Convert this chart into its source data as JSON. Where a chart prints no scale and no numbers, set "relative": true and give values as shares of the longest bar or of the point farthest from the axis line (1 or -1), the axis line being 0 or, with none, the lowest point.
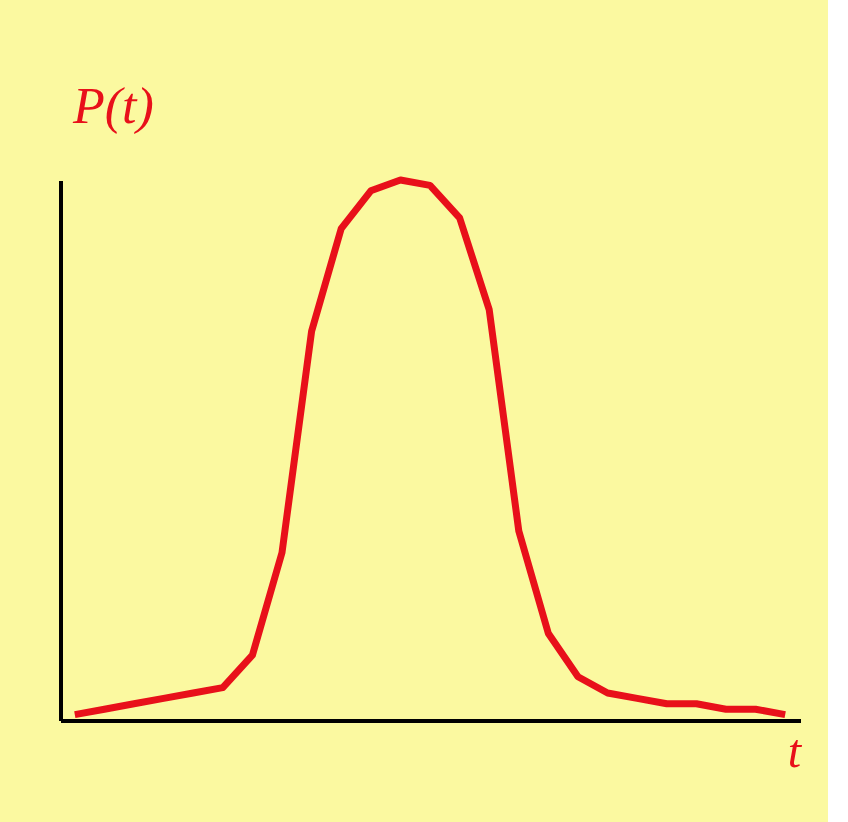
{
  "chart_data": {
    "type": "line",
    "relative": true,
    "xlabel": "t",
    "ylabel": "P(t)",
    "categories": [
      null,
      null,
      null,
      null,
      null,
      null,
      null,
      null,
      null,
      null,
      null,
      null,
      null,
      null,
      null,
      null,
      null,
      null,
      null,
      null,
      null,
      null,
      null,
      null,
      null
    ],
    "series": [
      {
        "color": "#e8101a",
        "values": [
          0.01,
          0.02,
          0.03,
          0.04,
          0.05,
          0.06,
          0.12,
          0.31,
          0.72,
          0.91,
          0.98,
          1.0,
          0.99,
          0.93,
          0.76,
          0.35,
          0.16,
          0.08,
          0.05,
          0.04,
          0.03,
          0.03,
          0.02,
          0.02,
          0.01
        ]
      }
    ],
    "grid": false,
    "marker": "none",
    "line_style": "solid"
  }
}
